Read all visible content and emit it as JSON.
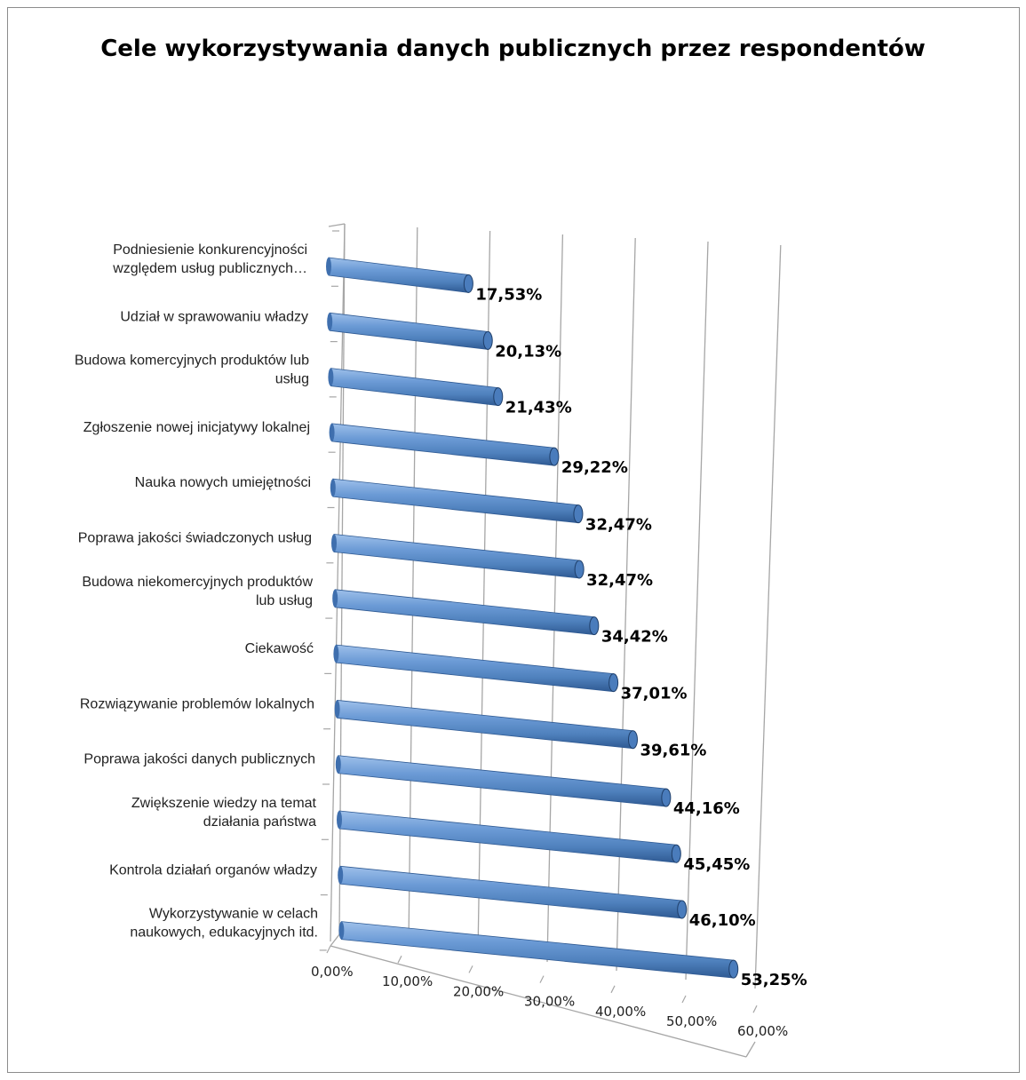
{
  "chart_data": {
    "type": "bar",
    "orientation": "horizontal",
    "title": "Cele wykorzystywania danych publicznych przez respondentów",
    "categories": [
      [
        "Podniesienie konkurencyjności",
        "względem usług publicznych…"
      ],
      [
        "Udział w sprawowaniu władzy"
      ],
      [
        "Budowa komercyjnych produktów lub",
        "usług"
      ],
      [
        "Zgłoszenie nowej inicjatywy lokalnej"
      ],
      [
        "Nauka nowych umiejętności"
      ],
      [
        "Poprawa jakości świadczonych usług"
      ],
      [
        "Budowa niekomercyjnych produktów",
        "lub usług"
      ],
      [
        "Ciekawość"
      ],
      [
        "Rozwiązywanie problemów lokalnych"
      ],
      [
        "Poprawa jakości danych publicznych"
      ],
      [
        "Zwiększenie wiedzy na temat",
        "działania państwa"
      ],
      [
        "Kontrola działań organów władzy"
      ],
      [
        "Wykorzystywanie w celach",
        "naukowych, edukacyjnych itd."
      ]
    ],
    "values": [
      17.53,
      20.13,
      21.43,
      29.22,
      32.47,
      32.47,
      34.42,
      37.01,
      39.61,
      44.16,
      45.45,
      46.1,
      53.25
    ],
    "value_labels": [
      "17,53%",
      "20,13%",
      "21,43%",
      "29,22%",
      "32,47%",
      "32,47%",
      "34,42%",
      "37,01%",
      "39,61%",
      "44,16%",
      "45,45%",
      "46,10%",
      "53,25%"
    ],
    "x_ticks": [
      "0,00%",
      "10,00%",
      "20,00%",
      "30,00%",
      "40,00%",
      "50,00%",
      "60,00%"
    ],
    "xlim": [
      0,
      60
    ],
    "grid": true,
    "legend": "none",
    "style": "3d-cylinder",
    "colors": {
      "bar": "#4f81bd",
      "bar_dark": "#2f5a93",
      "bar_light": "#9ec0ea",
      "grid": "#a6a6a6"
    }
  }
}
